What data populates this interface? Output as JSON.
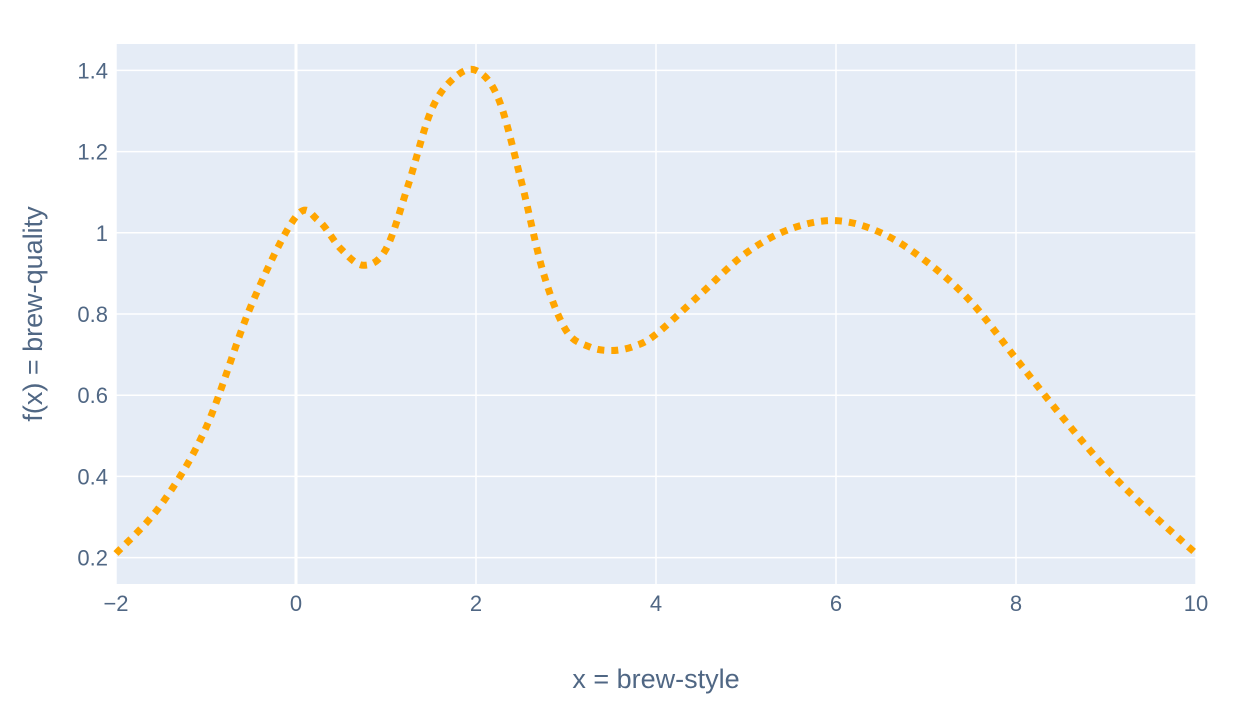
{
  "chart_data": {
    "type": "line",
    "title": "",
    "xlabel": "x = brew-style",
    "ylabel": "f(x) = brew-quality",
    "xlim": [
      -2,
      10
    ],
    "ylim": [
      0.135,
      1.465
    ],
    "x_ticks": [
      -2,
      0,
      2,
      4,
      6,
      8,
      10
    ],
    "x_tick_labels": [
      "−2",
      "0",
      "2",
      "4",
      "6",
      "8",
      "10"
    ],
    "y_ticks": [
      0.2,
      0.4,
      0.6,
      0.8,
      1.0,
      1.2,
      1.4
    ],
    "y_tick_labels": [
      "0.2",
      "0.4",
      "0.6",
      "0.8",
      "1",
      "1.2",
      "1.4"
    ],
    "grid": true,
    "background_color": "#e5ecf6",
    "series": [
      {
        "line_color": "#ffa500",
        "line_style": "dotted",
        "x": [
          -2.0,
          -1.5,
          -1.0,
          -0.5,
          0.0,
          0.25,
          0.5,
          0.75,
          1.0,
          1.25,
          1.5,
          1.75,
          2.0,
          2.25,
          2.5,
          2.75,
          3.0,
          3.25,
          3.5,
          3.75,
          4.0,
          4.5,
          5.0,
          5.5,
          6.0,
          6.5,
          7.0,
          7.5,
          8.0,
          8.5,
          9.0,
          9.5,
          10.0
        ],
        "y": [
          0.21,
          0.33,
          0.52,
          0.82,
          1.04,
          1.03,
          0.96,
          0.92,
          0.96,
          1.12,
          1.3,
          1.38,
          1.4,
          1.33,
          1.13,
          0.9,
          0.76,
          0.72,
          0.71,
          0.72,
          0.75,
          0.85,
          0.95,
          1.01,
          1.03,
          1.0,
          0.93,
          0.83,
          0.69,
          0.55,
          0.42,
          0.31,
          0.21
        ]
      }
    ]
  }
}
